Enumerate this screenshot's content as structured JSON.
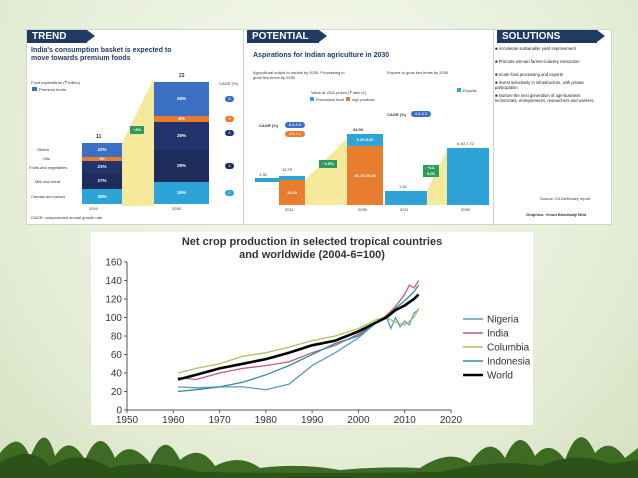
{
  "infographic": {
    "trend": {
      "header": "TREND",
      "title": "India's consumption basket is expected to move towards premium foods",
      "legend_title": "Food expenditure (₹ trillion)",
      "legend_item": "Premium foods",
      "cagr_label": "CAGR (%)",
      "footnote": "CAGR: compounded annual growth rate",
      "totals": [
        "11",
        "23"
      ],
      "growth_arrow": "~4%",
      "years": [
        "2010",
        "2030"
      ],
      "categories": [
        "Others",
        "Oils",
        "Fruits and vegetables",
        "Milk and meat",
        "Cereals and pulses"
      ],
      "bars_2010": [
        "22%",
        "5%",
        "21%",
        "27%",
        "26%"
      ],
      "bars_2030": [
        "26%",
        "4%",
        "25%",
        "28%",
        "16%"
      ],
      "cagr": [
        "5",
        "3",
        "4",
        "4",
        "2"
      ]
    },
    "potential": {
      "header": "POTENTIAL",
      "title": "Aspirations for Indian agriculture in 2030",
      "sub1": "Agricultural output to double by 2030. Processing to grow five times by 2030",
      "sub2": "Exports to grow two times by 2030",
      "value_note": "Value at 2011 prices (₹ lakh cr)",
      "legend_processed": "Processed food",
      "legend_agri": "Agri produce",
      "legend_exports": "Exports",
      "cagr_label": "CAGR (%)",
      "cagr_pills": [
        "8.5-9.5",
        "4.5-4.1"
      ],
      "cagr_exports": "4.5-4.3",
      "left_vals": [
        "1.30",
        "13.79",
        "12.49",
        "34.93",
        "5.20-5.60",
        "26.73-29.28"
      ],
      "left_arrow": "~4.8%",
      "right_vals": [
        "1.40",
        "6.40-7.72"
      ],
      "right_arrow": "~4.2-5.2%",
      "years": [
        "2011",
        "2030",
        "2011",
        "2030"
      ]
    },
    "solutions": {
      "header": "SOLUTIONS",
      "items": [
        "Accelerate sustainable yield improvement",
        "Promote win-win farmer-industry interaction",
        "Scale food processing and exports",
        "Invest selectively in infrastructure, with private participation",
        "Nurture the next generation of agri-business technocrats, entrepreneurs, researchers and workers."
      ],
      "source": "Source: CII-McKinsey report",
      "credit": "Graphics: Vinod Bhardwaj/ Mint"
    }
  },
  "chart_data": {
    "type": "line",
    "title": "Net crop production in selected tropical countries and worldwide (2004-6=100)",
    "xlabel": "",
    "ylabel": "",
    "xlim": [
      1950,
      2020
    ],
    "ylim": [
      0,
      160
    ],
    "xticks": [
      "1950",
      "1960",
      "1970",
      "1980",
      "1990",
      "2000",
      "2010",
      "2020"
    ],
    "yticks": [
      "0",
      "20",
      "40",
      "60",
      "80",
      "100",
      "120",
      "140",
      "160"
    ],
    "legend_position": "right",
    "series": [
      {
        "name": "Nigeria",
        "color": "#5b9bc4",
        "x": [
          1961,
          1965,
          1970,
          1975,
          1980,
          1985,
          1990,
          1995,
          2000,
          2004,
          2006,
          2007,
          2008,
          2009,
          2010,
          2011,
          2012,
          2013
        ],
        "y": [
          25,
          24,
          25,
          25,
          22,
          28,
          48,
          62,
          78,
          95,
          102,
          88,
          100,
          90,
          96,
          92,
          105,
          108
        ]
      },
      {
        "name": "India",
        "color": "#c45a7a",
        "x": [
          1961,
          1965,
          1970,
          1975,
          1980,
          1985,
          1990,
          1995,
          2000,
          2004,
          2006,
          2008,
          2010,
          2011,
          2012,
          2013
        ],
        "y": [
          35,
          33,
          40,
          45,
          48,
          52,
          62,
          70,
          82,
          95,
          102,
          112,
          125,
          135,
          132,
          140
        ]
      },
      {
        "name": "Columbia",
        "color": "#a8c45a",
        "x": [
          1961,
          1965,
          1970,
          1975,
          1980,
          1985,
          1990,
          1995,
          2000,
          2004,
          2006,
          2008,
          2010,
          2012,
          2013
        ],
        "y": [
          40,
          45,
          50,
          58,
          62,
          68,
          75,
          80,
          88,
          98,
          100,
          95,
          92,
          100,
          110
        ]
      },
      {
        "name": "Indonesia",
        "color": "#2f8fa0",
        "x": [
          1961,
          1965,
          1970,
          1975,
          1980,
          1985,
          1990,
          1995,
          2000,
          2004,
          2006,
          2008,
          2010,
          2012,
          2013
        ],
        "y": [
          20,
          22,
          25,
          30,
          38,
          48,
          60,
          72,
          80,
          95,
          100,
          110,
          118,
          128,
          135
        ]
      },
      {
        "name": "World",
        "color": "#000000",
        "x": [
          1961,
          1965,
          1970,
          1975,
          1980,
          1985,
          1990,
          1995,
          2000,
          2004,
          2006,
          2008,
          2010,
          2012,
          2013
        ],
        "y": [
          33,
          38,
          45,
          50,
          55,
          62,
          70,
          75,
          85,
          95,
          100,
          108,
          113,
          120,
          125
        ]
      }
    ]
  }
}
